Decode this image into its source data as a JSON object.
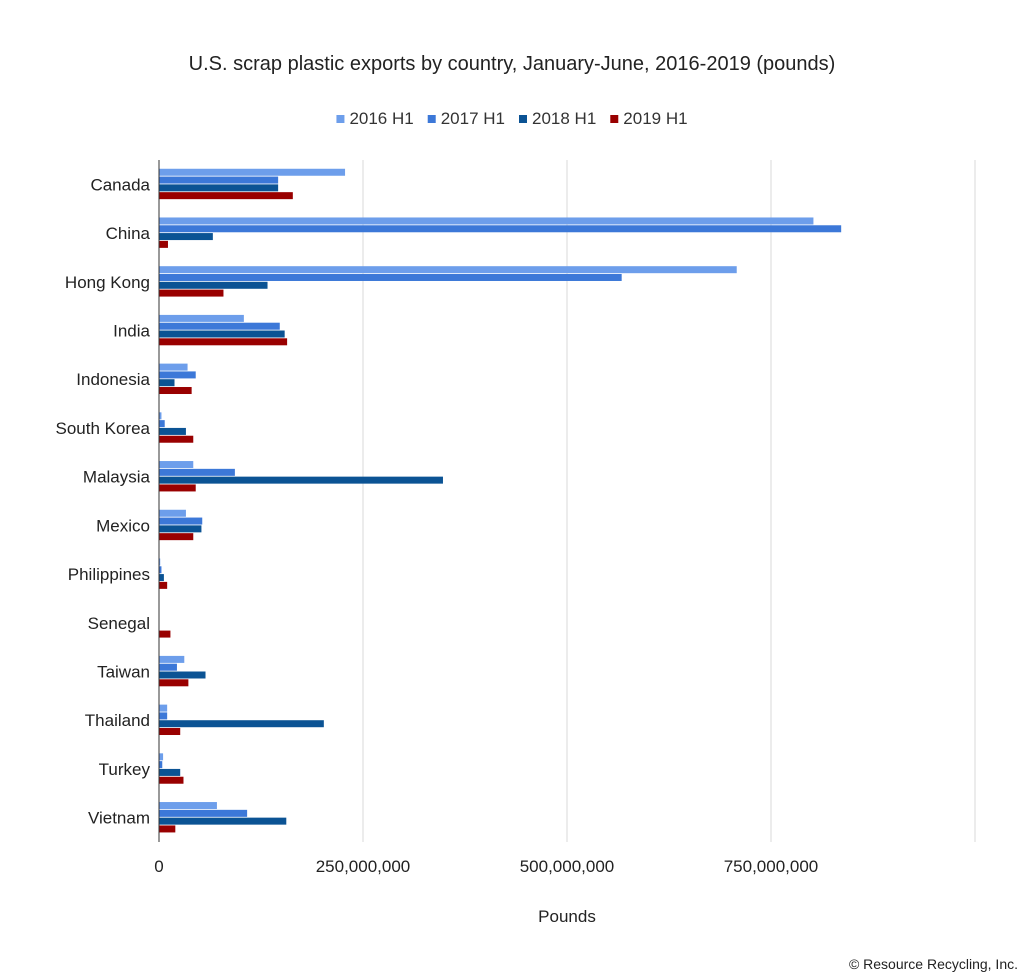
{
  "chart_data": {
    "type": "bar",
    "orientation": "horizontal",
    "title": "U.S. scrap plastic exports by country, January-June, 2016-2019 (pounds)",
    "xlabel": "Pounds",
    "ylabel": "",
    "categories": [
      "Canada",
      "China",
      "Hong Kong",
      "India",
      "Indonesia",
      "South Korea",
      "Malaysia",
      "Mexico",
      "Philippines",
      "Senegal",
      "Taiwan",
      "Thailand",
      "Turkey",
      "Vietnam"
    ],
    "series": [
      {
        "name": "2016 H1",
        "color": "#6d9eeb",
        "values": [
          228000000,
          802000000,
          708000000,
          104000000,
          35000000,
          3000000,
          42000000,
          33000000,
          1500000,
          0,
          31000000,
          10000000,
          5000000,
          71000000
        ]
      },
      {
        "name": "2017 H1",
        "color": "#3c78d8",
        "values": [
          146000000,
          836000000,
          567000000,
          148000000,
          45000000,
          7000000,
          93000000,
          53000000,
          3000000,
          0,
          22000000,
          10000000,
          4000000,
          108000000
        ]
      },
      {
        "name": "2018 H1",
        "color": "#0b5394",
        "values": [
          146000000,
          66000000,
          133000000,
          154000000,
          19000000,
          33000000,
          348000000,
          52000000,
          6000000,
          0,
          57000000,
          202000000,
          26000000,
          156000000
        ]
      },
      {
        "name": "2019 H1",
        "color": "#990000",
        "values": [
          164000000,
          11000000,
          79000000,
          157000000,
          40000000,
          42000000,
          45000000,
          42000000,
          10000000,
          14000000,
          36000000,
          26000000,
          30000000,
          20000000
        ]
      }
    ],
    "xlim": [
      0,
      1000000000
    ],
    "xticks": [
      0,
      250000000,
      500000000,
      750000000
    ],
    "xtick_labels": [
      "0",
      "250,000,000",
      "500,000,000",
      "750,000,000"
    ],
    "grid": true,
    "legend_position": "top-center"
  },
  "credit": "© Resource Recycling, Inc."
}
